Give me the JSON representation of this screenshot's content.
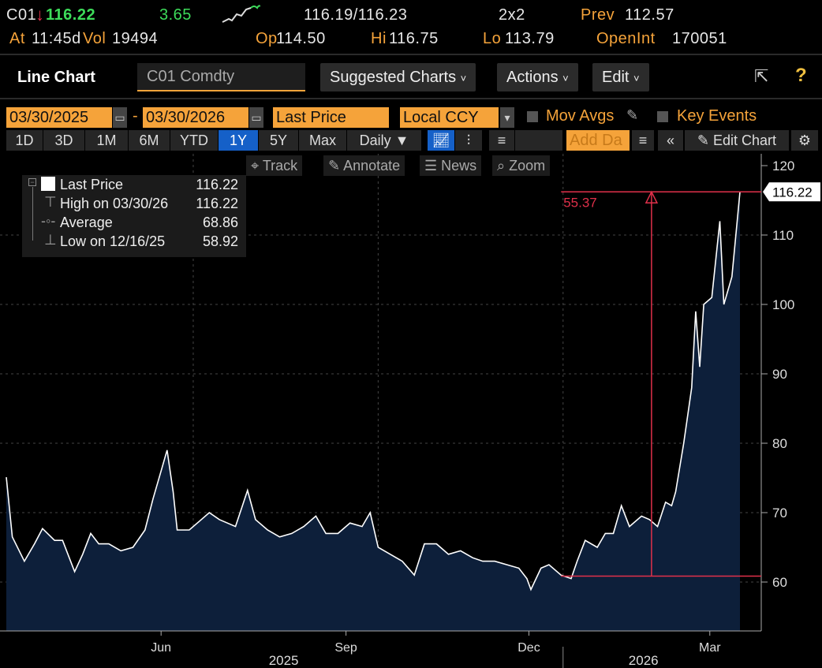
{
  "quote": {
    "ticker": "C01",
    "direction": "down",
    "last": "116.22",
    "change": "3.65",
    "bid_ask": "116.19/116.23",
    "size": "2x2",
    "prev_label": "Prev",
    "prev": "112.57",
    "at_label": "At",
    "time": "11:45d",
    "vol_label": "Vol",
    "vol": "19494",
    "op_label": "Op",
    "op": "114.50",
    "hi_label": "Hi",
    "hi": "116.75",
    "lo_label": "Lo",
    "lo": "113.79",
    "oi_label": "OpenInt",
    "oi": "170051"
  },
  "toolbar": {
    "title": "Line Chart",
    "security": "C01 Comdty",
    "suggested": "Suggested Charts",
    "actions": "Actions",
    "edit": "Edit"
  },
  "controls": {
    "start_date": "03/30/2025",
    "end_date": "03/30/2026",
    "dash": "-",
    "field": "Last Price",
    "currency": "Local CCY",
    "mov_avgs": "Mov Avgs",
    "key_events": "Key Events",
    "ranges": [
      "1D",
      "3D",
      "1M",
      "6M",
      "YTD",
      "1Y",
      "5Y",
      "Max"
    ],
    "selected_range": "1Y",
    "frequency": "Daily ▼",
    "add_data": "Add Da",
    "edit_chart": "Edit Chart"
  },
  "chart_tools": {
    "track": "Track",
    "annotate": "Annotate",
    "news": "News",
    "zoom": "Zoom"
  },
  "legend": {
    "rows": [
      {
        "label": "Last Price",
        "value": "116.22"
      },
      {
        "label": "High on 03/30/26",
        "value": "116.22"
      },
      {
        "label": "Average",
        "value": "68.86"
      },
      {
        "label": "Low on 12/16/25",
        "value": "58.92"
      }
    ]
  },
  "colors": {
    "accent": "#f5a33a",
    "line": "#ffffff",
    "area": "#0d1f3a",
    "annotation": "#e0304a",
    "selected": "#1560c8"
  },
  "chart_data": {
    "type": "area",
    "title": "C01 Comdty Last Price",
    "ylim": [
      54,
      122
    ],
    "yticks": [
      60,
      70,
      80,
      90,
      100,
      110,
      120
    ],
    "x_start": "2025-03-30",
    "x_end": "2026-03-30",
    "xticks": [
      {
        "date": "2025-06-15",
        "label": "Jun"
      },
      {
        "date": "2025-09-15",
        "label": "Sep"
      },
      {
        "date": "2025-12-15",
        "label": "Dec"
      },
      {
        "date": "2026-03-15",
        "label": "Mar"
      }
    ],
    "year_labels": [
      {
        "date": "2025-08-15",
        "label": "2025"
      },
      {
        "date": "2026-02-10",
        "label": "2026"
      }
    ],
    "last_value_label": "116.22",
    "annotation": {
      "label": "55.37",
      "from_date": "2025-12-31",
      "from_value": 60.85,
      "to_date": "2026-03-30",
      "to_value": 116.22,
      "arrow_date": "2026-02-14"
    },
    "series": [
      {
        "name": "Last Price",
        "points": [
          [
            "2025-03-30",
            75.1
          ],
          [
            "2025-04-02",
            66.5
          ],
          [
            "2025-04-08",
            63
          ],
          [
            "2025-04-13",
            65.5
          ],
          [
            "2025-04-17",
            67.7
          ],
          [
            "2025-04-23",
            66
          ],
          [
            "2025-04-27",
            66
          ],
          [
            "2025-05-03",
            61.5
          ],
          [
            "2025-05-07",
            64
          ],
          [
            "2025-05-11",
            67
          ],
          [
            "2025-05-15",
            65.5
          ],
          [
            "2025-05-20",
            65.5
          ],
          [
            "2025-05-26",
            64.5
          ],
          [
            "2025-06-01",
            65
          ],
          [
            "2025-06-07",
            67.5
          ],
          [
            "2025-06-11",
            72
          ],
          [
            "2025-06-15",
            76
          ],
          [
            "2025-06-18",
            79
          ],
          [
            "2025-06-21",
            73
          ],
          [
            "2025-06-23",
            67.5
          ],
          [
            "2025-06-29",
            67.5
          ],
          [
            "2025-07-05",
            69
          ],
          [
            "2025-07-09",
            70
          ],
          [
            "2025-07-14",
            69
          ],
          [
            "2025-07-22",
            68
          ],
          [
            "2025-07-28",
            73.2
          ],
          [
            "2025-08-01",
            69
          ],
          [
            "2025-08-07",
            67.5
          ],
          [
            "2025-08-13",
            66.5
          ],
          [
            "2025-08-19",
            67
          ],
          [
            "2025-08-25",
            68
          ],
          [
            "2025-08-31",
            69.5
          ],
          [
            "2025-09-05",
            67
          ],
          [
            "2025-09-11",
            67
          ],
          [
            "2025-09-17",
            68.5
          ],
          [
            "2025-09-23",
            68
          ],
          [
            "2025-09-27",
            70
          ],
          [
            "2025-10-01",
            65
          ],
          [
            "2025-10-07",
            64
          ],
          [
            "2025-10-13",
            63
          ],
          [
            "2025-10-19",
            61
          ],
          [
            "2025-10-24",
            65.5
          ],
          [
            "2025-10-30",
            65.5
          ],
          [
            "2025-11-05",
            64
          ],
          [
            "2025-11-11",
            64.5
          ],
          [
            "2025-11-17",
            63.5
          ],
          [
            "2025-11-22",
            63
          ],
          [
            "2025-11-28",
            63
          ],
          [
            "2025-12-04",
            62.5
          ],
          [
            "2025-12-10",
            62
          ],
          [
            "2025-12-14",
            60.5
          ],
          [
            "2025-12-16",
            58.92
          ],
          [
            "2025-12-21",
            62
          ],
          [
            "2025-12-25",
            62.5
          ],
          [
            "2025-12-31",
            61
          ],
          [
            "2026-01-05",
            60.5
          ],
          [
            "2026-01-08",
            63
          ],
          [
            "2026-01-12",
            66
          ],
          [
            "2026-01-18",
            65
          ],
          [
            "2026-01-22",
            67
          ],
          [
            "2026-01-26",
            67
          ],
          [
            "2026-01-30",
            71
          ],
          [
            "2026-02-03",
            68
          ],
          [
            "2026-02-09",
            69.5
          ],
          [
            "2026-02-13",
            69
          ],
          [
            "2026-02-17",
            68
          ],
          [
            "2026-02-21",
            71.5
          ],
          [
            "2026-02-24",
            71
          ],
          [
            "2026-02-26",
            73
          ],
          [
            "2026-03-02",
            80
          ],
          [
            "2026-03-06",
            88
          ],
          [
            "2026-03-08",
            99
          ],
          [
            "2026-03-10",
            91
          ],
          [
            "2026-03-12",
            100
          ],
          [
            "2026-03-16",
            101
          ],
          [
            "2026-03-20",
            112
          ],
          [
            "2026-03-22",
            100
          ],
          [
            "2026-03-26",
            104
          ],
          [
            "2026-03-30",
            116.22
          ]
        ]
      }
    ]
  }
}
